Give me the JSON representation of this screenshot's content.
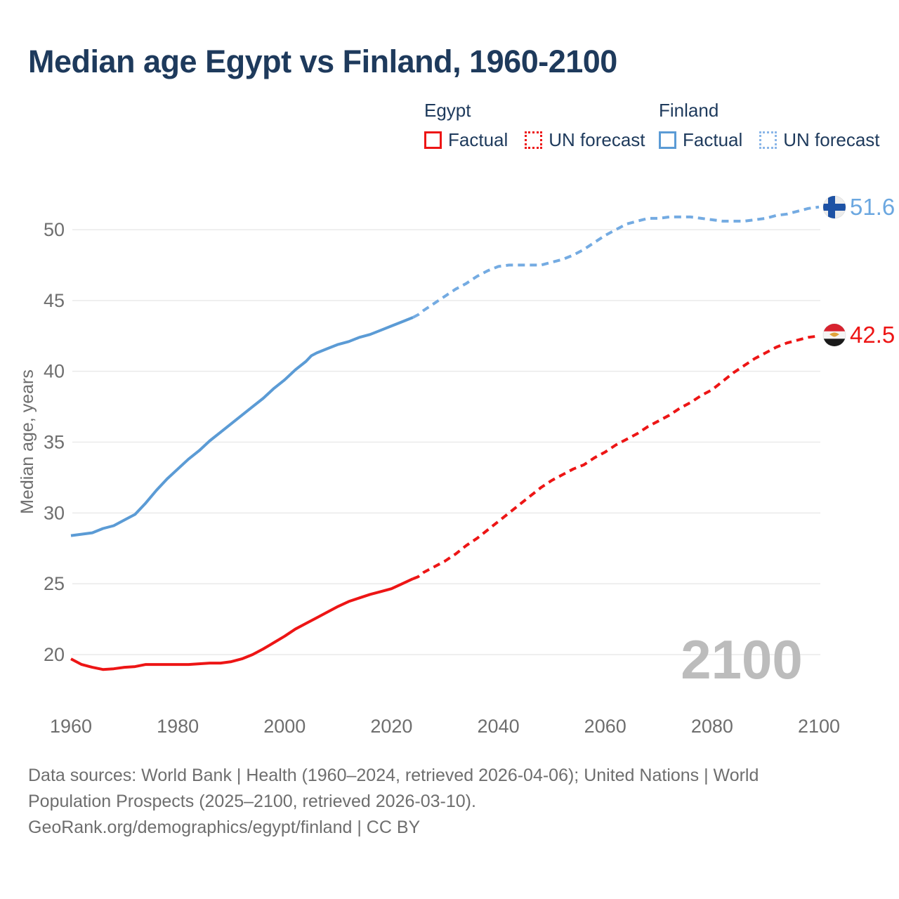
{
  "title": "Median age Egypt vs Finland, 1960-2100",
  "legend": {
    "egypt_label": "Egypt",
    "finland_label": "Finland",
    "factual_label": "Factual",
    "forecast_label": "UN forecast"
  },
  "watermark": "2100",
  "end_labels": {
    "finland": "51.6",
    "egypt": "42.5"
  },
  "footer": {
    "lines": [
      "Data sources: World Bank | Health (1960–2024, retrieved 2026-04-06); United Nations | World",
      "Population Prospects (2025–2100, retrieved 2026-03-10).",
      "GeoRank.org/demographics/egypt/finland | CC BY"
    ]
  },
  "colors": {
    "egypt": "#ed1515",
    "egypt_forecast": "#ed1515",
    "finland": "#5b9bd5",
    "finland_forecast": "#74abe2",
    "title_text": "#1e3a5c",
    "axis_text": "#6e6e6e",
    "grid": "#eaeaea",
    "watermark": "#bcbcbc",
    "finland_flag_blue": "#1d52a5",
    "egypt_flag_red": "#d8232f",
    "egypt_flag_black": "#1a1a1a",
    "egypt_flag_gold": "#e0a33a"
  },
  "chart_data": {
    "type": "line",
    "title": "Median age Egypt vs Finland, 1960-2100",
    "xlabel": "",
    "ylabel": "Median age, years",
    "x_ticks": [
      1960,
      1980,
      2000,
      2020,
      2040,
      2060,
      2080,
      2100
    ],
    "y_ticks": [
      20,
      25,
      30,
      35,
      40,
      45,
      50
    ],
    "xlim": [
      1960,
      2100
    ],
    "ylim": [
      18.5,
      52.5
    ],
    "grid": "horizontal",
    "legend_position": "top-right",
    "forecast_start_year": 2025,
    "end_values": {
      "finland": 51.6,
      "egypt": 42.5
    },
    "series": [
      {
        "name": "Finland Factual",
        "style": "solid",
        "color_key": "finland",
        "points": [
          [
            1960,
            28.4
          ],
          [
            1962,
            28.5
          ],
          [
            1964,
            28.6
          ],
          [
            1966,
            28.9
          ],
          [
            1968,
            29.1
          ],
          [
            1970,
            29.5
          ],
          [
            1972,
            29.9
          ],
          [
            1974,
            30.7
          ],
          [
            1976,
            31.6
          ],
          [
            1978,
            32.4
          ],
          [
            1980,
            33.1
          ],
          [
            1982,
            33.8
          ],
          [
            1984,
            34.4
          ],
          [
            1986,
            35.1
          ],
          [
            1988,
            35.7
          ],
          [
            1990,
            36.3
          ],
          [
            1992,
            36.9
          ],
          [
            1994,
            37.5
          ],
          [
            1996,
            38.1
          ],
          [
            1998,
            38.8
          ],
          [
            2000,
            39.4
          ],
          [
            2002,
            40.1
          ],
          [
            2004,
            40.7
          ],
          [
            2005,
            41.1
          ],
          [
            2006,
            41.3
          ],
          [
            2008,
            41.6
          ],
          [
            2010,
            41.9
          ],
          [
            2012,
            42.1
          ],
          [
            2014,
            42.4
          ],
          [
            2016,
            42.6
          ],
          [
            2018,
            42.9
          ],
          [
            2020,
            43.2
          ],
          [
            2022,
            43.5
          ],
          [
            2024,
            43.8
          ]
        ]
      },
      {
        "name": "Finland UN forecast",
        "style": "dashed",
        "color_key": "finland_forecast",
        "points": [
          [
            2024,
            43.8
          ],
          [
            2025,
            44.0
          ],
          [
            2026,
            44.3
          ],
          [
            2028,
            44.8
          ],
          [
            2030,
            45.3
          ],
          [
            2032,
            45.8
          ],
          [
            2034,
            46.2
          ],
          [
            2036,
            46.7
          ],
          [
            2038,
            47.1
          ],
          [
            2040,
            47.4
          ],
          [
            2042,
            47.5
          ],
          [
            2044,
            47.5
          ],
          [
            2046,
            47.5
          ],
          [
            2048,
            47.5
          ],
          [
            2050,
            47.7
          ],
          [
            2052,
            47.9
          ],
          [
            2054,
            48.2
          ],
          [
            2056,
            48.6
          ],
          [
            2058,
            49.1
          ],
          [
            2060,
            49.6
          ],
          [
            2062,
            50.0
          ],
          [
            2064,
            50.4
          ],
          [
            2066,
            50.6
          ],
          [
            2068,
            50.8
          ],
          [
            2070,
            50.8
          ],
          [
            2072,
            50.9
          ],
          [
            2074,
            50.9
          ],
          [
            2076,
            50.9
          ],
          [
            2078,
            50.8
          ],
          [
            2080,
            50.7
          ],
          [
            2082,
            50.6
          ],
          [
            2084,
            50.6
          ],
          [
            2086,
            50.6
          ],
          [
            2088,
            50.7
          ],
          [
            2090,
            50.8
          ],
          [
            2092,
            51.0
          ],
          [
            2094,
            51.1
          ],
          [
            2096,
            51.3
          ],
          [
            2098,
            51.5
          ],
          [
            2100,
            51.6
          ]
        ]
      },
      {
        "name": "Egypt Factual",
        "style": "solid",
        "color_key": "egypt",
        "points": [
          [
            1960,
            19.7
          ],
          [
            1962,
            19.3
          ],
          [
            1964,
            19.1
          ],
          [
            1966,
            18.95
          ],
          [
            1968,
            19.0
          ],
          [
            1970,
            19.1
          ],
          [
            1972,
            19.15
          ],
          [
            1974,
            19.3
          ],
          [
            1976,
            19.3
          ],
          [
            1978,
            19.3
          ],
          [
            1980,
            19.3
          ],
          [
            1982,
            19.3
          ],
          [
            1984,
            19.35
          ],
          [
            1986,
            19.4
          ],
          [
            1988,
            19.4
          ],
          [
            1990,
            19.5
          ],
          [
            1992,
            19.7
          ],
          [
            1994,
            20.0
          ],
          [
            1996,
            20.4
          ],
          [
            1998,
            20.85
          ],
          [
            2000,
            21.3
          ],
          [
            2002,
            21.8
          ],
          [
            2004,
            22.2
          ],
          [
            2006,
            22.6
          ],
          [
            2008,
            23.0
          ],
          [
            2010,
            23.4
          ],
          [
            2012,
            23.75
          ],
          [
            2014,
            24.0
          ],
          [
            2016,
            24.25
          ],
          [
            2018,
            24.45
          ],
          [
            2020,
            24.65
          ],
          [
            2022,
            25.0
          ],
          [
            2024,
            25.35
          ]
        ]
      },
      {
        "name": "Egypt UN forecast",
        "style": "dashed",
        "color_key": "egypt_forecast",
        "points": [
          [
            2024,
            25.35
          ],
          [
            2025,
            25.5
          ],
          [
            2026,
            25.8
          ],
          [
            2028,
            26.2
          ],
          [
            2030,
            26.6
          ],
          [
            2032,
            27.1
          ],
          [
            2034,
            27.7
          ],
          [
            2036,
            28.2
          ],
          [
            2038,
            28.8
          ],
          [
            2040,
            29.4
          ],
          [
            2042,
            30.0
          ],
          [
            2044,
            30.6
          ],
          [
            2046,
            31.2
          ],
          [
            2048,
            31.8
          ],
          [
            2050,
            32.3
          ],
          [
            2052,
            32.7
          ],
          [
            2054,
            33.1
          ],
          [
            2056,
            33.4
          ],
          [
            2058,
            33.9
          ],
          [
            2060,
            34.3
          ],
          [
            2062,
            34.8
          ],
          [
            2064,
            35.2
          ],
          [
            2066,
            35.6
          ],
          [
            2068,
            36.1
          ],
          [
            2070,
            36.5
          ],
          [
            2072,
            36.9
          ],
          [
            2074,
            37.4
          ],
          [
            2076,
            37.8
          ],
          [
            2078,
            38.3
          ],
          [
            2080,
            38.7
          ],
          [
            2082,
            39.3
          ],
          [
            2084,
            39.9
          ],
          [
            2086,
            40.4
          ],
          [
            2088,
            40.9
          ],
          [
            2090,
            41.3
          ],
          [
            2092,
            41.7
          ],
          [
            2094,
            42.0
          ],
          [
            2096,
            42.2
          ],
          [
            2098,
            42.4
          ],
          [
            2100,
            42.5
          ]
        ]
      }
    ]
  }
}
